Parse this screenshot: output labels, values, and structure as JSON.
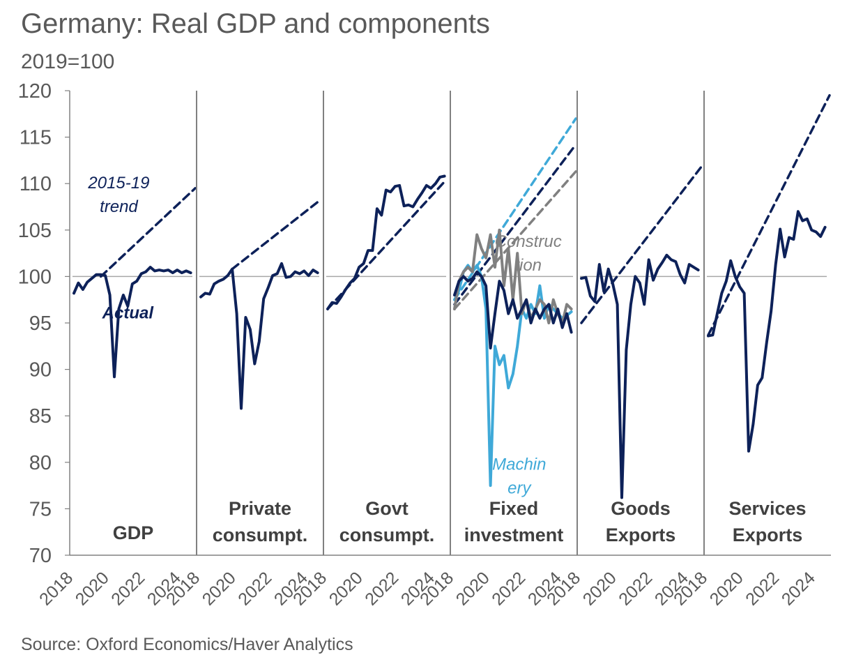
{
  "header": {
    "title": "Germany: Real GDP and components",
    "subtitle": "2019=100"
  },
  "footer": {
    "source": "Source: Oxford Economics/Haver Analytics"
  },
  "chart_data": {
    "type": "line",
    "ylim": [
      70,
      120
    ],
    "yticks": [
      70,
      75,
      80,
      85,
      90,
      95,
      100,
      105,
      110,
      115,
      120
    ],
    "xlim": [
      2018,
      2024.75
    ],
    "xticks": [
      "2018",
      "2020",
      "2022",
      "2024"
    ],
    "reference_line": 100,
    "colors": {
      "actual": "#0d2159",
      "machinery": "#3fa9d8",
      "construction": "#808080",
      "axis": "#808080"
    },
    "panels": [
      {
        "label": [
          "GDP"
        ],
        "annotations": [
          {
            "text": [
              "2015-19",
              "trend"
            ],
            "x": 2020.5,
            "y": 109.5,
            "color": "#0d2159"
          },
          {
            "text": [
              "Actual"
            ],
            "x": 2021.0,
            "y": 95.5,
            "color": "#0d2159",
            "bold": true
          }
        ],
        "series": [
          {
            "style": "solid",
            "color": "#0d2159",
            "x": [
              2018,
              2018.25,
              2018.5,
              2018.75,
              2019,
              2019.25,
              2019.5,
              2019.75,
              2020,
              2020.25,
              2020.5,
              2020.75,
              2021,
              2021.25,
              2021.5,
              2021.75,
              2022,
              2022.25,
              2022.5,
              2022.75,
              2023,
              2023.25,
              2023.5,
              2023.75,
              2024,
              2024.25,
              2024.5
            ],
            "y": [
              98.2,
              99.3,
              98.6,
              99.4,
              99.8,
              100.2,
              100.2,
              100.1,
              98.0,
              89.2,
              96.5,
              98.0,
              96.8,
              99.2,
              99.5,
              100.3,
              100.5,
              101.0,
              100.6,
              100.7,
              100.6,
              100.7,
              100.4,
              100.7,
              100.4,
              100.6,
              100.4
            ]
          },
          {
            "style": "dashed",
            "color": "#0d2159",
            "x": [
              2019.5,
              2024.75
            ],
            "y": [
              100.0,
              109.5
            ]
          }
        ]
      },
      {
        "label": [
          "Private",
          "consumpt."
        ],
        "series": [
          {
            "style": "solid",
            "color": "#0d2159",
            "x": [
              2018,
              2018.25,
              2018.5,
              2018.75,
              2019,
              2019.25,
              2019.5,
              2019.75,
              2020,
              2020.25,
              2020.5,
              2020.75,
              2021,
              2021.25,
              2021.5,
              2021.75,
              2022,
              2022.25,
              2022.5,
              2022.75,
              2023,
              2023.25,
              2023.5,
              2023.75,
              2024,
              2024.25,
              2024.5
            ],
            "y": [
              97.8,
              98.2,
              98.1,
              99.2,
              99.5,
              99.7,
              100.1,
              100.8,
              96.0,
              85.8,
              95.6,
              94.3,
              90.6,
              93.0,
              97.6,
              98.8,
              100.1,
              100.3,
              101.4,
              99.9,
              100.0,
              100.5,
              100.3,
              100.6,
              100.1,
              100.7,
              100.4
            ]
          },
          {
            "style": "dashed",
            "color": "#0d2159",
            "x": [
              2019.75,
              2024.5
            ],
            "y": [
              100.8,
              108.0
            ]
          }
        ]
      },
      {
        "label": [
          "Govt",
          "consumpt."
        ],
        "series": [
          {
            "style": "solid",
            "color": "#0d2159",
            "x": [
              2018,
              2018.25,
              2018.5,
              2018.75,
              2019,
              2019.25,
              2019.5,
              2019.75,
              2020,
              2020.25,
              2020.5,
              2020.75,
              2021,
              2021.25,
              2021.5,
              2021.75,
              2022,
              2022.25,
              2022.5,
              2022.75,
              2023,
              2023.25,
              2023.5,
              2023.75,
              2024,
              2024.25,
              2024.5
            ],
            "y": [
              96.5,
              97.2,
              97.1,
              97.8,
              98.6,
              99.3,
              99.8,
              101.0,
              101.4,
              102.8,
              102.8,
              107.3,
              106.6,
              109.3,
              109.1,
              109.7,
              109.8,
              107.6,
              107.7,
              107.5,
              108.3,
              109.0,
              109.8,
              109.5,
              110.0,
              110.7,
              110.8
            ]
          },
          {
            "style": "dashed",
            "color": "#0d2159",
            "x": [
              2018,
              2024.5
            ],
            "y": [
              96.5,
              110.2
            ]
          }
        ]
      },
      {
        "label": [
          "Fixed",
          "investment"
        ],
        "annotations": [
          {
            "text": [
              "Construc",
              "tion"
            ],
            "x": 2022.1,
            "y": 103.2,
            "color": "#808080"
          },
          {
            "text": [
              "Machin",
              "ery"
            ],
            "x": 2021.6,
            "y": 79.2,
            "color": "#3fa9d8"
          }
        ],
        "series": [
          {
            "style": "dashed",
            "color": "#3fa9d8",
            "x": [
              2018,
              2024.75
            ],
            "y": [
              97.5,
              117.0
            ]
          },
          {
            "style": "dashed",
            "color": "#0d2159",
            "x": [
              2018,
              2024.75
            ],
            "y": [
              97.0,
              114.2
            ]
          },
          {
            "style": "dashed",
            "color": "#808080",
            "x": [
              2018,
              2024.75
            ],
            "y": [
              96.5,
              111.3
            ]
          },
          {
            "style": "solid",
            "color": "#3fa9d8",
            "x": [
              2018,
              2018.25,
              2018.5,
              2018.75,
              2019,
              2019.25,
              2019.5,
              2019.75,
              2020,
              2020.25,
              2020.5,
              2020.75,
              2021,
              2021.25,
              2021.5,
              2021.75,
              2022,
              2022.25,
              2022.5,
              2022.75,
              2023,
              2023.25,
              2023.5,
              2023.75,
              2024,
              2024.25,
              2024.5
            ],
            "y": [
              97.5,
              98.5,
              100.5,
              101.2,
              100.5,
              101.2,
              100.0,
              96.5,
              77.5,
              92.5,
              90.5,
              91.5,
              88.0,
              89.5,
              92.5,
              96.5,
              95.5,
              97.0,
              96.0,
              99.0,
              95.5,
              97.0,
              96.5,
              96.0,
              95.5,
              95.8,
              96.2
            ]
          },
          {
            "style": "solid",
            "color": "#808080",
            "x": [
              2018,
              2018.25,
              2018.5,
              2018.75,
              2019,
              2019.25,
              2019.5,
              2019.75,
              2020,
              2020.25,
              2020.5,
              2020.75,
              2021,
              2021.25,
              2021.5,
              2021.75,
              2022,
              2022.25,
              2022.5,
              2022.75,
              2023,
              2023.25,
              2023.5,
              2023.75,
              2024,
              2024.25,
              2024.5
            ],
            "y": [
              96.5,
              99.5,
              100.5,
              101.0,
              100.5,
              104.5,
              103.0,
              102.0,
              104.5,
              101.0,
              105.0,
              99.0,
              103.0,
              97.5,
              102.5,
              96.0,
              97.5,
              95.5,
              96.5,
              97.5,
              97.0,
              95.0,
              97.5,
              96.0,
              95.0,
              97.0,
              96.5
            ]
          },
          {
            "style": "solid",
            "color": "#0d2159",
            "x": [
              2018,
              2018.25,
              2018.5,
              2018.75,
              2019,
              2019.25,
              2019.5,
              2019.75,
              2020,
              2020.25,
              2020.5,
              2020.75,
              2021,
              2021.25,
              2021.5,
              2021.75,
              2022,
              2022.25,
              2022.5,
              2022.75,
              2023,
              2023.25,
              2023.5,
              2023.75,
              2024,
              2024.25,
              2024.5
            ],
            "y": [
              98.0,
              99.5,
              100.0,
              99.5,
              99.8,
              100.5,
              100.0,
              99.0,
              92.3,
              96.0,
              99.5,
              98.5,
              96.0,
              97.5,
              95.5,
              96.5,
              97.5,
              95.0,
              96.5,
              95.5,
              96.5,
              97.0,
              95.0,
              96.5,
              94.5,
              96.0,
              94.0
            ]
          }
        ]
      },
      {
        "label": [
          "Goods",
          "Exports"
        ],
        "series": [
          {
            "style": "solid",
            "color": "#0d2159",
            "x": [
              2018,
              2018.25,
              2018.5,
              2018.75,
              2019,
              2019.25,
              2019.5,
              2019.75,
              2020,
              2020.25,
              2020.5,
              2020.75,
              2021,
              2021.25,
              2021.5,
              2021.75,
              2022,
              2022.25,
              2022.5,
              2022.75,
              2023,
              2023.25,
              2023.5,
              2023.75,
              2024,
              2024.25,
              2024.5
            ],
            "y": [
              99.8,
              99.9,
              97.9,
              97.3,
              101.3,
              98.4,
              100.8,
              99.2,
              97.0,
              76.2,
              92.1,
              97.0,
              100.0,
              99.3,
              97.0,
              101.8,
              99.6,
              100.8,
              101.5,
              102.3,
              101.8,
              101.6,
              100.2,
              99.3,
              101.3,
              101.0,
              100.7
            ]
          },
          {
            "style": "dashed",
            "color": "#0d2159",
            "x": [
              2018,
              2024.75
            ],
            "y": [
              95.0,
              112.0
            ]
          }
        ]
      },
      {
        "label": [
          "Services",
          "Exports"
        ],
        "series": [
          {
            "style": "solid",
            "color": "#0d2159",
            "x": [
              2018,
              2018.25,
              2018.5,
              2018.75,
              2019,
              2019.25,
              2019.5,
              2019.75,
              2020,
              2020.25,
              2020.5,
              2020.75,
              2021,
              2021.25,
              2021.5,
              2021.75,
              2022,
              2022.25,
              2022.5,
              2022.75,
              2023,
              2023.25,
              2023.5,
              2023.75,
              2024,
              2024.25,
              2024.5
            ],
            "y": [
              93.6,
              93.7,
              96.0,
              98.2,
              99.5,
              101.7,
              100.0,
              98.9,
              98.2,
              81.2,
              84.1,
              88.3,
              89.1,
              92.9,
              96.3,
              101.3,
              105.1,
              102.1,
              104.2,
              104.0,
              107.0,
              106.0,
              106.2,
              105.0,
              104.8,
              104.3,
              105.3
            ]
          },
          {
            "style": "dashed",
            "color": "#0d2159",
            "x": [
              2018,
              2024.75
            ],
            "y": [
              93.7,
              119.5
            ]
          }
        ]
      }
    ]
  }
}
